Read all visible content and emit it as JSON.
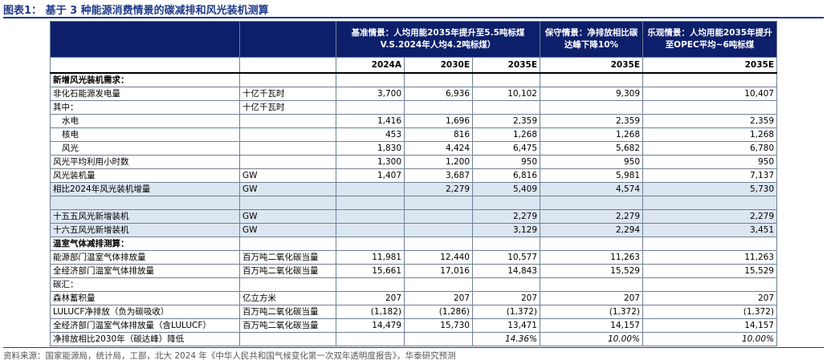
{
  "title": "图表1：  基于 3 种能源消费情景的碳减排和风光装机测算",
  "scenarios": {
    "baseline": "基准情景：人均用能2035年提升至5.5吨标煤V.S.2024年人均4.2吨标煤）",
    "conservative": "保守情景：净排放相比碳达峰下降10%",
    "optimistic": "乐观情景：人均用能2035年提升至OPEC平均~6吨标煤"
  },
  "years": [
    "2024A",
    "2030E",
    "2035E",
    "2035E",
    "2035E"
  ],
  "rows": [
    {
      "label": "新增风光装机需求：",
      "unit": "",
      "values": [
        "",
        "",
        "",
        "",
        ""
      ],
      "style": "sec"
    },
    {
      "label": "非化石能源发电量",
      "unit": "十亿千瓦时",
      "values": [
        "3,700",
        "6,936",
        "10,102",
        "9,309",
        "10,407"
      ]
    },
    {
      "label": "其中：",
      "unit": "十亿千瓦时",
      "values": [
        "",
        "",
        "",
        "",
        ""
      ]
    },
    {
      "label": "水电",
      "unit": "",
      "values": [
        "1,416",
        "1,696",
        "2,359",
        "2,359",
        "2,359"
      ],
      "indent": true
    },
    {
      "label": "核电",
      "unit": "",
      "values": [
        "453",
        "816",
        "1,268",
        "1,268",
        "1,268"
      ],
      "indent": true
    },
    {
      "label": "风光",
      "unit": "",
      "values": [
        "1,830",
        "4,424",
        "6,475",
        "5,682",
        "6,780"
      ],
      "indent": true
    },
    {
      "label": "风光平均利用小时数",
      "unit": "",
      "values": [
        "1,300",
        "1,200",
        "950",
        "950",
        "950"
      ]
    },
    {
      "label": "风光装机量",
      "unit": "GW",
      "values": [
        "1,407",
        "3,687",
        "6,816",
        "5,981",
        "7,137"
      ]
    },
    {
      "label": "相比2024年风光装机增量",
      "unit": "GW",
      "values": [
        "",
        "2,279",
        "5,409",
        "4,574",
        "5,730"
      ],
      "style": "shade"
    },
    {
      "label": "",
      "unit": "",
      "values": [
        "",
        "",
        "",
        "",
        ""
      ],
      "style": "shade"
    },
    {
      "label": "十五五风光新增装机",
      "unit": "GW",
      "values": [
        "",
        "",
        "2,279",
        "2,279",
        "2,279"
      ],
      "style": "shade"
    },
    {
      "label": "十六五风光新增装机",
      "unit": "GW",
      "values": [
        "",
        "",
        "3,129",
        "2,294",
        "3,451"
      ],
      "style": "shade"
    },
    {
      "label": "温室气体减排测算：",
      "unit": "",
      "values": [
        "",
        "",
        "",
        "",
        ""
      ],
      "style": "sec"
    },
    {
      "label": "能源部门温室气体排放量",
      "unit": "百万吨二氧化碳当量",
      "values": [
        "11,981",
        "12,440",
        "10,577",
        "11,263",
        "11,263"
      ]
    },
    {
      "label": "全经济部门温室气体排放量",
      "unit": "百万吨二氧化碳当量",
      "values": [
        "15,661",
        "17,016",
        "14,843",
        "15,529",
        "15,529"
      ]
    },
    {
      "label": "碳汇：",
      "unit": "",
      "values": [
        "",
        "",
        "",
        "",
        ""
      ]
    },
    {
      "label": "森林蓄积量",
      "unit": "亿立方米",
      "values": [
        "207",
        "207",
        "207",
        "207",
        "207"
      ]
    },
    {
      "label": "LULUCF净排放（负为碳吸收）",
      "unit": "百万吨二氧化碳当量",
      "values": [
        "(1,182)",
        "(1,286)",
        "(1,372)",
        "(1,372)",
        "(1,372)"
      ]
    },
    {
      "label": "全经济部门温室气体排放量（含LULUCF）",
      "unit": "百万吨二氧化碳当量",
      "values": [
        "14,479",
        "15,730",
        "13,471",
        "14,157",
        "14,157"
      ]
    },
    {
      "label": "净排放相比2030年（碳达峰）降低",
      "unit": "",
      "values": [
        "",
        "",
        "14.36%",
        "10.00%",
        "10.00%"
      ],
      "style": "pct"
    }
  ],
  "source": "资料来源：国家能源局，统计局，工部，北大 2024 年《中华人民共和国气候变化第一次双年透明度报告》，华泰研究预测"
}
